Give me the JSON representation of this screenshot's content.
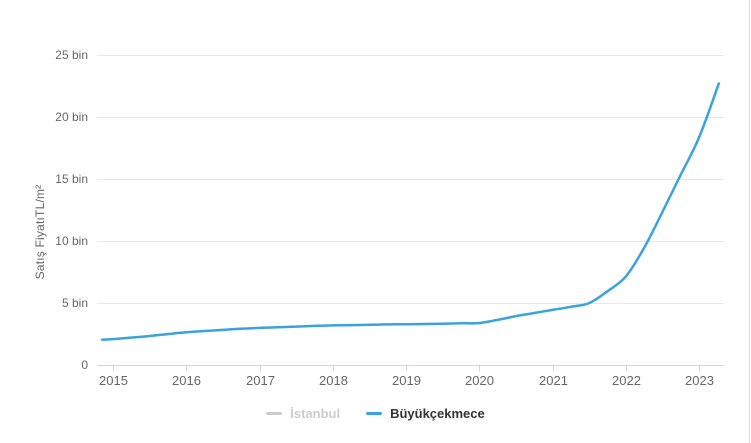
{
  "chart": {
    "y_axis_title": "Satış FiyatıTL/m²",
    "colors": {
      "line": "#3ba2dc",
      "grid": "#e6e6e6",
      "axis": "#ccd6eb",
      "tick": "#ccd6eb",
      "label_text": "#666666",
      "legend_active_text": "#333333",
      "legend_inactive": "#cccccc",
      "background": "#ffffff"
    },
    "y_ticks": [
      {
        "value": 0,
        "label": "0"
      },
      {
        "value": 5000,
        "label": "5 bin"
      },
      {
        "value": 10000,
        "label": "10 bin"
      },
      {
        "value": 15000,
        "label": "15 bin"
      },
      {
        "value": 20000,
        "label": "20 bin"
      },
      {
        "value": 25000,
        "label": "25 bin"
      }
    ],
    "x_ticks": [
      {
        "value": 2015,
        "label": "2015"
      },
      {
        "value": 2016,
        "label": "2016"
      },
      {
        "value": 2017,
        "label": "2017"
      },
      {
        "value": 2018,
        "label": "2018"
      },
      {
        "value": 2019,
        "label": "2019"
      },
      {
        "value": 2020,
        "label": "2020"
      },
      {
        "value": 2021,
        "label": "2021"
      },
      {
        "value": 2022,
        "label": "2022"
      },
      {
        "value": 2023,
        "label": "2023"
      }
    ],
    "legend": {
      "items": [
        {
          "label": "İstanbul",
          "color": "#cccccc",
          "active": false
        },
        {
          "label": "Büyükçekmece",
          "color": "#3ba2dc",
          "active": true
        }
      ]
    }
  },
  "chart_data": {
    "type": "line",
    "title": "",
    "xlabel": "",
    "ylabel": "Satış FiyatıTL/m²",
    "y_unit": "TL/m² (bin = thousand)",
    "x_unit": "year",
    "xlim": [
      2014.75,
      2023.35
    ],
    "ylim": [
      0,
      25000
    ],
    "grid": true,
    "legend_position": "bottom",
    "series": [
      {
        "name": "İstanbul",
        "visible": false,
        "x": [],
        "values": []
      },
      {
        "name": "Büyükçekmece",
        "visible": true,
        "x": [
          2014.85,
          2015.0,
          2015.25,
          2015.5,
          2015.75,
          2016.0,
          2016.25,
          2016.5,
          2016.75,
          2017.0,
          2017.25,
          2017.5,
          2017.75,
          2018.0,
          2018.25,
          2018.5,
          2018.75,
          2019.0,
          2019.25,
          2019.5,
          2019.75,
          2020.0,
          2020.25,
          2020.5,
          2020.75,
          2021.0,
          2021.25,
          2021.5,
          2021.75,
          2022.0,
          2022.25,
          2022.5,
          2022.75,
          2023.0,
          2023.27
        ],
        "values": [
          2000,
          2050,
          2170,
          2300,
          2450,
          2600,
          2700,
          2790,
          2880,
          2950,
          3010,
          3060,
          3110,
          3150,
          3180,
          3200,
          3230,
          3250,
          3270,
          3290,
          3320,
          3350,
          3600,
          3900,
          4150,
          4400,
          4650,
          4950,
          5900,
          7100,
          9400,
          12300,
          15300,
          18300,
          22650
        ]
      }
    ]
  }
}
